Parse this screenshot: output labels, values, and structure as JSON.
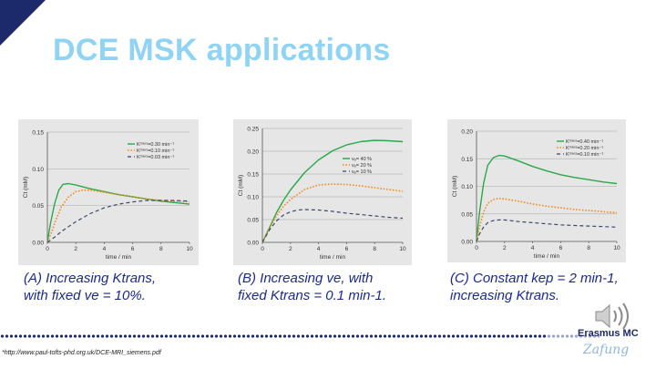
{
  "slide_title": "DCE MSK applications",
  "footnote": "*http://www.paul-tofts-phd.org.uk/DCE-MRI_siemens.pdf",
  "logo": {
    "text": "Erasmus MC",
    "script": "Zafung",
    "icon": "speaker-icon"
  },
  "colors": {
    "title": "#8fd3f5",
    "caption": "#1a2a8f",
    "green": "#2aa84a",
    "orange": "#f08c1e",
    "navy": "#3a4a6b",
    "accent": "#1c2a6b"
  },
  "captions": [
    {
      "line1": "(A) Increasing Ktrans,",
      "line2": "with fixed ve = 10%."
    },
    {
      "line1": "(B) Increasing ve, with",
      "line2": "fixed Ktrans = 0.1 min-1."
    },
    {
      "line1": "(C) Constant kep = 2 min-1,",
      "line2": "increasing Ktrans."
    }
  ],
  "chart_data": [
    {
      "type": "line",
      "xlabel": "time / min",
      "ylabel": "Ct (mM)",
      "xlim": [
        0,
        10
      ],
      "ylim": [
        0,
        0.15
      ],
      "xticks": [
        0,
        2,
        4,
        6,
        8,
        10
      ],
      "yticks": [
        0,
        0.05,
        0.1,
        0.15
      ],
      "ytick_labels": [
        "0.00",
        "0.05",
        "0.10",
        "0.15"
      ],
      "grid": true,
      "legend": "top-right",
      "series": [
        {
          "name": "Kᵗʳᵃⁿˢ=0.30 min⁻¹",
          "style": "solid",
          "x": [
            0,
            0.2,
            0.5,
            0.8,
            1.1,
            1.5,
            2,
            3,
            4,
            5,
            6,
            7,
            8,
            9,
            10
          ],
          "y": [
            0,
            0.024,
            0.052,
            0.071,
            0.079,
            0.08,
            0.078,
            0.073,
            0.069,
            0.065,
            0.062,
            0.059,
            0.056,
            0.054,
            0.052
          ]
        },
        {
          "name": "Kᵗʳᵃⁿˢ=0.10 min⁻¹",
          "style": "dotted",
          "x": [
            0,
            0.3,
            0.6,
            1,
            1.5,
            2,
            2.5,
            3,
            4,
            5,
            6,
            7,
            8,
            9,
            10
          ],
          "y": [
            0,
            0.014,
            0.031,
            0.049,
            0.062,
            0.069,
            0.071,
            0.071,
            0.068,
            0.065,
            0.062,
            0.059,
            0.057,
            0.056,
            0.055
          ]
        },
        {
          "name": "Kᵗʳᵃⁿˢ=0.03 min⁻¹",
          "style": "dashed",
          "x": [
            0,
            0.5,
            1,
            2,
            3,
            4,
            5,
            6,
            7,
            8,
            9,
            10
          ],
          "y": [
            0,
            0.007,
            0.015,
            0.028,
            0.039,
            0.047,
            0.052,
            0.055,
            0.057,
            0.057,
            0.057,
            0.056
          ]
        }
      ]
    },
    {
      "type": "line",
      "xlabel": "time / min",
      "ylabel": "Ct (mM)",
      "xlim": [
        0,
        10
      ],
      "ylim": [
        0,
        0.25
      ],
      "xticks": [
        0,
        2,
        4,
        6,
        8,
        10
      ],
      "yticks": [
        0,
        0.05,
        0.1,
        0.15,
        0.2,
        0.25
      ],
      "ytick_labels": [
        "0.00",
        "0.05",
        "0.10",
        "0.15",
        "0.20",
        "0.25"
      ],
      "grid": true,
      "legend": "right",
      "series": [
        {
          "name": "vₑ= 40 %",
          "style": "solid",
          "x": [
            0,
            0.5,
            1,
            1.5,
            2,
            3,
            4,
            5,
            6,
            7,
            8,
            9,
            10
          ],
          "y": [
            0,
            0.032,
            0.065,
            0.092,
            0.115,
            0.153,
            0.181,
            0.201,
            0.214,
            0.221,
            0.224,
            0.223,
            0.221
          ]
        },
        {
          "name": "vₑ= 20 %",
          "style": "dotted",
          "x": [
            0,
            0.5,
            1,
            1.5,
            2,
            3,
            4,
            5,
            6,
            7,
            8,
            9,
            10
          ],
          "y": [
            0,
            0.03,
            0.058,
            0.079,
            0.094,
            0.116,
            0.126,
            0.128,
            0.127,
            0.124,
            0.12,
            0.116,
            0.112
          ]
        },
        {
          "name": "vₑ= 10 %",
          "style": "dashed",
          "x": [
            0,
            0.5,
            1,
            1.5,
            2,
            2.5,
            3,
            4,
            5,
            6,
            7,
            8,
            9,
            10
          ],
          "y": [
            0,
            0.027,
            0.047,
            0.06,
            0.067,
            0.071,
            0.072,
            0.071,
            0.068,
            0.064,
            0.061,
            0.058,
            0.055,
            0.053
          ]
        }
      ]
    },
    {
      "type": "line",
      "xlabel": "time / min",
      "ylabel": "Ct (mM)",
      "xlim": [
        0,
        10
      ],
      "ylim": [
        0,
        0.2
      ],
      "xticks": [
        0,
        2,
        4,
        6,
        8,
        10
      ],
      "yticks": [
        0,
        0.05,
        0.1,
        0.15,
        0.2
      ],
      "ytick_labels": [
        "0.00",
        "0.05",
        "0.10",
        "0.15",
        "0.20"
      ],
      "grid": true,
      "legend": "top-right",
      "series": [
        {
          "name": "Kᵗʳᵃⁿˢ=0.40 min⁻¹",
          "style": "solid",
          "x": [
            0,
            0.2,
            0.5,
            0.8,
            1.2,
            1.6,
            2,
            3,
            4,
            5,
            6,
            7,
            8,
            9,
            10
          ],
          "y": [
            0,
            0.05,
            0.105,
            0.138,
            0.152,
            0.156,
            0.155,
            0.146,
            0.136,
            0.128,
            0.121,
            0.116,
            0.112,
            0.108,
            0.105
          ]
        },
        {
          "name": "Kᵗʳᵃⁿˢ=0.20 min⁻¹",
          "style": "dotted",
          "x": [
            0,
            0.2,
            0.5,
            0.8,
            1.2,
            1.6,
            2,
            3,
            4,
            5,
            6,
            7,
            8,
            9,
            10
          ],
          "y": [
            0,
            0.025,
            0.053,
            0.069,
            0.076,
            0.078,
            0.077,
            0.073,
            0.068,
            0.064,
            0.061,
            0.058,
            0.056,
            0.054,
            0.052
          ]
        },
        {
          "name": "Kᵗʳᵃⁿˢ=0.10 min⁻¹",
          "style": "dashed",
          "x": [
            0,
            0.2,
            0.5,
            0.8,
            1.2,
            1.6,
            2,
            3,
            4,
            5,
            6,
            7,
            8,
            9,
            10
          ],
          "y": [
            0,
            0.013,
            0.026,
            0.034,
            0.038,
            0.039,
            0.039,
            0.036,
            0.034,
            0.032,
            0.03,
            0.029,
            0.028,
            0.027,
            0.026
          ]
        }
      ]
    }
  ]
}
